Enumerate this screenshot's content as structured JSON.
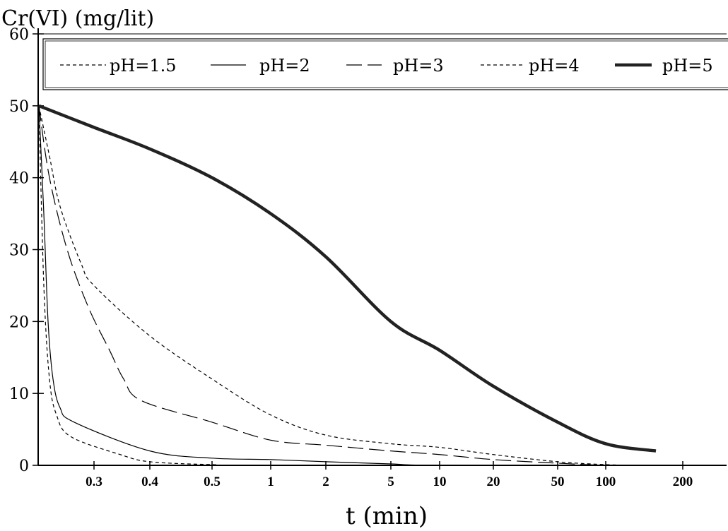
{
  "chart_data": {
    "type": "line",
    "ylabel": "Cr(VI) (mg/lit)",
    "xlabel": "t (min)",
    "ylim": [
      0,
      60
    ],
    "yticks": [
      0,
      10,
      20,
      30,
      40,
      50,
      60
    ],
    "xtick_labels": [
      "0.3",
      "0.4",
      "0.5",
      "1",
      "2",
      "5",
      "10",
      "20",
      "50",
      "100",
      "200"
    ],
    "grid": false,
    "legend_position": "top",
    "x_scale": "nonuniform categorical (labelled tick positions)",
    "series": [
      {
        "name": "pH=1.5",
        "style": "short-dash",
        "points": [
          [
            "start",
            50
          ],
          [
            "0.3",
            43
          ],
          [
            "0.3",
            36
          ],
          [
            "0.3",
            28
          ],
          [
            "0.3",
            25
          ],
          [
            "0.4",
            18
          ],
          [
            "0.5",
            12
          ],
          [
            "1",
            7
          ],
          [
            "2",
            4.2
          ],
          [
            "5",
            3
          ],
          [
            "10",
            2.5
          ],
          [
            "20",
            1.5
          ],
          [
            "50",
            0.5
          ],
          [
            "100",
            0.1
          ],
          [
            "200",
            0
          ]
        ]
      },
      {
        "name": "pH=2",
        "style": "solid-thin",
        "points": [
          [
            "start",
            50
          ],
          [
            "0.3",
            35
          ],
          [
            "0.3",
            20
          ],
          [
            "0.3",
            12
          ],
          [
            "0.3",
            8
          ],
          [
            "0.3",
            6
          ],
          [
            "0.4",
            2
          ],
          [
            "0.5",
            1
          ],
          [
            "1",
            0.8
          ],
          [
            "2",
            0.5
          ],
          [
            "5",
            0.2
          ],
          [
            "10",
            0
          ],
          [
            "200",
            0
          ]
        ]
      },
      {
        "name": "pH=3",
        "style": "long-dash",
        "points": [
          [
            "start",
            50
          ],
          [
            "0.3",
            40
          ],
          [
            "0.3",
            30
          ],
          [
            "0.3",
            22
          ],
          [
            "0.4",
            16
          ],
          [
            "0.4",
            12
          ],
          [
            "0.4",
            9
          ],
          [
            "0.5",
            6
          ],
          [
            "1",
            3.5
          ],
          [
            "2",
            2.8
          ],
          [
            "5",
            2
          ],
          [
            "10",
            1.5
          ],
          [
            "20",
            0.8
          ],
          [
            "50",
            0.3
          ],
          [
            "100",
            0
          ],
          [
            "200",
            0
          ]
        ]
      },
      {
        "name": "pH=4",
        "style": "short-dash",
        "points": [
          [
            "start",
            50
          ],
          [
            "0.3",
            25
          ],
          [
            "0.3",
            12
          ],
          [
            "0.3",
            7
          ],
          [
            "0.3",
            4
          ],
          [
            "0.4",
            1.5
          ],
          [
            "0.4",
            0.5
          ],
          [
            "0.5",
            0.1
          ],
          [
            "1",
            0
          ],
          [
            "200",
            0
          ]
        ]
      },
      {
        "name": "pH=5",
        "style": "solid-thick",
        "points": [
          [
            "start",
            50
          ],
          [
            "0.3",
            47
          ],
          [
            "0.4",
            44
          ],
          [
            "0.5",
            40
          ],
          [
            "1",
            35
          ],
          [
            "2",
            29
          ],
          [
            "5",
            20
          ],
          [
            "10",
            16
          ],
          [
            "20",
            11
          ],
          [
            "50",
            6
          ],
          [
            "100",
            3
          ],
          [
            "200",
            2
          ]
        ]
      }
    ]
  }
}
